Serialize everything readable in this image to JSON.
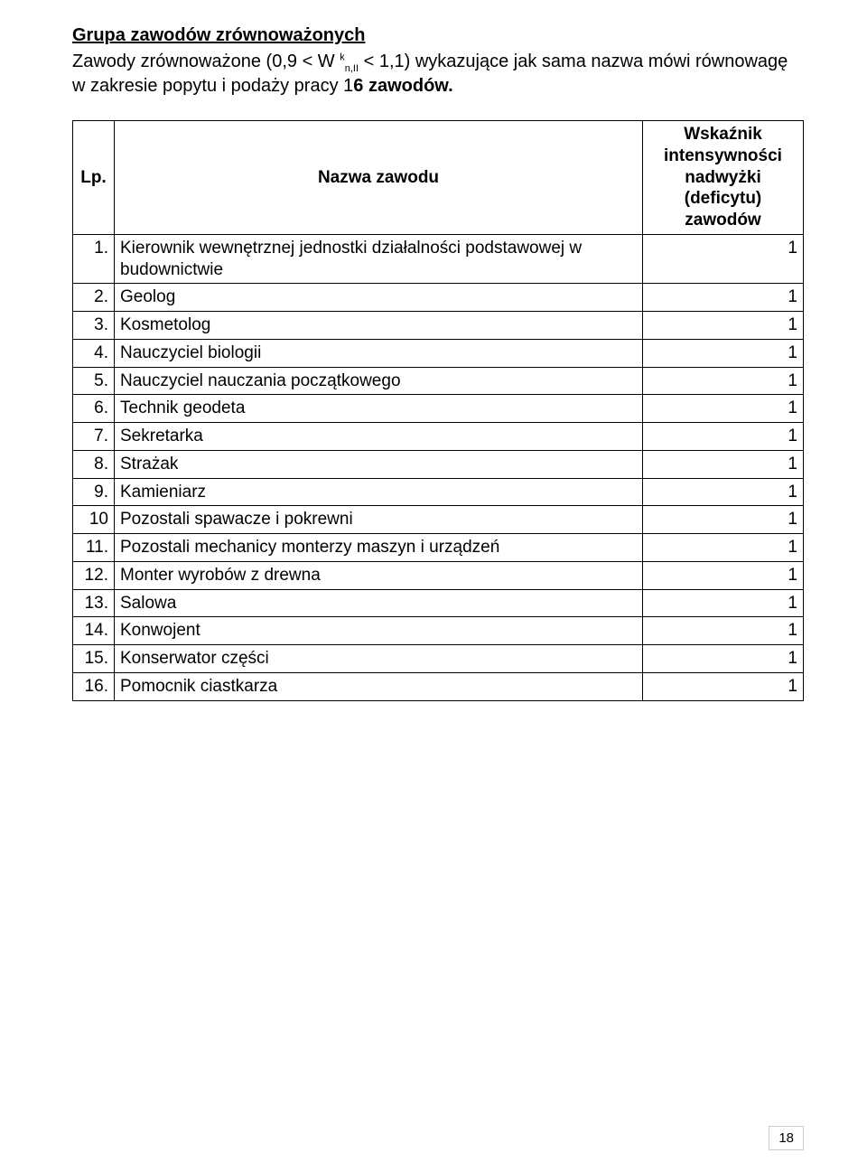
{
  "section_title": "Grupa zawodów zrównoważonych",
  "intro_html": "Zawody zrównoważone (0,9 < W <span class=\"sup\">k</span><span class=\"sub\">n,II</span> < 1,1) wykazujące jak sama nazwa mówi równowagę w zakresie popytu i podaży pracy 1<b>6 zawodów.</b>",
  "table": {
    "headers": {
      "lp": "Lp.",
      "name": "Nazwa zawodu",
      "value": "Wskaźnik intensywności nadwyżki (deficytu) zawodów"
    },
    "rows": [
      {
        "lp": "1.",
        "name": "Kierownik wewnętrznej jednostki działalności podstawowej w budownictwie",
        "val": "1"
      },
      {
        "lp": "2.",
        "name": "Geolog",
        "val": "1"
      },
      {
        "lp": "3.",
        "name": "Kosmetolog",
        "val": "1"
      },
      {
        "lp": "4.",
        "name": "Nauczyciel biologii",
        "val": "1"
      },
      {
        "lp": "5.",
        "name": "Nauczyciel nauczania początkowego",
        "val": "1"
      },
      {
        "lp": "6.",
        "name": "Technik geodeta",
        "val": "1"
      },
      {
        "lp": "7.",
        "name": "Sekretarka",
        "val": "1"
      },
      {
        "lp": "8.",
        "name": "Strażak",
        "val": "1"
      },
      {
        "lp": "9.",
        "name": "Kamieniarz",
        "val": "1"
      },
      {
        "lp": "10",
        "name": "Pozostali spawacze i pokrewni",
        "val": "1"
      },
      {
        "lp": "11.",
        "name": "Pozostali mechanicy monterzy maszyn i urządzeń",
        "val": "1"
      },
      {
        "lp": "12.",
        "name": "Monter wyrobów z drewna",
        "val": "1"
      },
      {
        "lp": "13.",
        "name": "Salowa",
        "val": "1"
      },
      {
        "lp": "14.",
        "name": "Konwojent",
        "val": "1"
      },
      {
        "lp": "15.",
        "name": "Konserwator części",
        "val": "1"
      },
      {
        "lp": "16.",
        "name": "Pomocnik ciastkarza",
        "val": "1"
      }
    ]
  },
  "page_number": "18"
}
